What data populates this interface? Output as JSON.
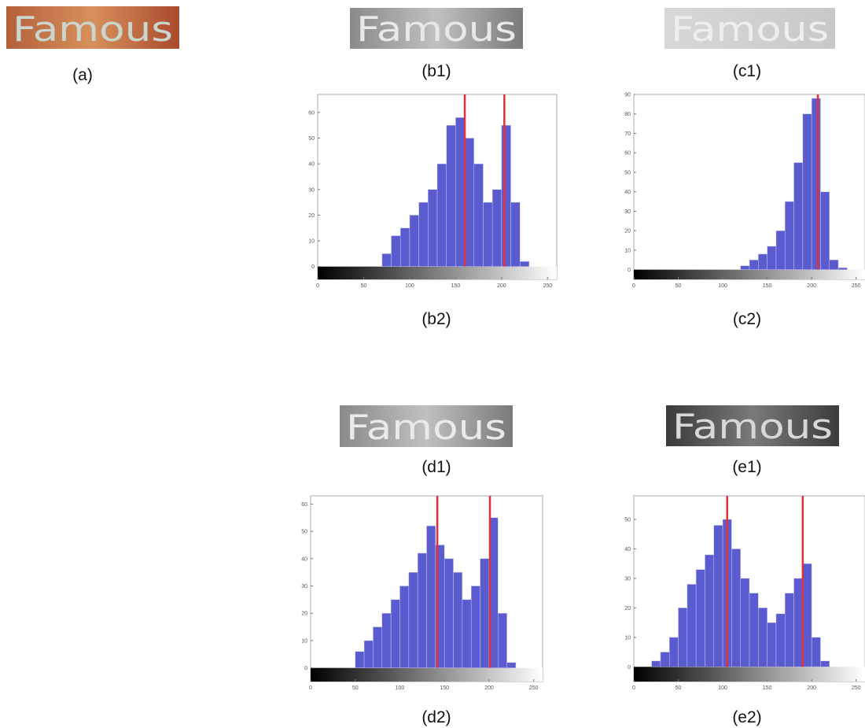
{
  "panels": [
    {
      "label": "(a)",
      "word": "Famous"
    },
    {
      "label": "(b1)",
      "word": "Famous"
    },
    {
      "label": "(c1)",
      "word": "Famous"
    },
    {
      "label": "(d1)",
      "word": "Famous"
    },
    {
      "label": "(e1)",
      "word": "Famous"
    }
  ],
  "chart_data": [
    {
      "type": "histogram",
      "label": "(b2)",
      "color": "#5b5bd0",
      "line_color": "#e0303a",
      "bins": [
        0,
        10,
        20,
        30,
        40,
        50,
        60,
        70,
        80,
        90,
        100,
        110,
        120,
        130,
        140,
        150,
        160,
        170,
        180,
        190,
        200,
        210,
        220,
        230,
        240,
        250,
        260
      ],
      "counts": [
        0,
        0,
        0,
        0,
        0,
        0,
        0,
        5,
        12,
        15,
        20,
        25,
        30,
        40,
        55,
        58,
        50,
        40,
        25,
        30,
        55,
        25,
        2,
        0,
        0,
        0
      ],
      "lines": [
        160,
        203
      ],
      "xlim": [
        0,
        260
      ],
      "xticks": [
        0,
        50,
        100,
        150,
        200,
        250
      ],
      "ylim": [
        -5,
        67
      ],
      "yticks": [
        0,
        10,
        20,
        30,
        40,
        50,
        60
      ]
    },
    {
      "type": "histogram",
      "label": "(c2)",
      "color": "#5b5bd0",
      "line_color": "#e0303a",
      "bins": [
        0,
        10,
        20,
        30,
        40,
        50,
        60,
        70,
        80,
        90,
        100,
        110,
        120,
        130,
        140,
        150,
        160,
        170,
        180,
        190,
        200,
        210,
        220,
        230,
        240,
        250,
        260
      ],
      "counts": [
        0,
        0,
        0,
        0,
        0,
        0,
        0,
        0,
        0,
        0,
        0,
        0,
        2,
        5,
        8,
        12,
        20,
        35,
        55,
        80,
        88,
        40,
        5,
        1,
        0,
        0
      ],
      "lines": [
        207
      ],
      "xlim": [
        0,
        260
      ],
      "xticks": [
        0,
        50,
        100,
        150,
        200,
        250
      ],
      "ylim": [
        -5,
        90
      ],
      "yticks": [
        0,
        10,
        20,
        30,
        40,
        50,
        60,
        70,
        80,
        90
      ]
    },
    {
      "type": "histogram",
      "label": "(d2)",
      "color": "#5b5bd0",
      "line_color": "#e0303a",
      "bins": [
        0,
        10,
        20,
        30,
        40,
        50,
        60,
        70,
        80,
        90,
        100,
        110,
        120,
        130,
        140,
        150,
        160,
        170,
        180,
        190,
        200,
        210,
        220,
        230,
        240,
        250,
        260
      ],
      "counts": [
        0,
        0,
        0,
        0,
        0,
        6,
        10,
        15,
        20,
        25,
        30,
        35,
        42,
        52,
        45,
        40,
        35,
        25,
        30,
        40,
        55,
        20,
        2,
        0,
        0,
        0
      ],
      "lines": [
        142,
        201
      ],
      "xlim": [
        0,
        260
      ],
      "xticks": [
        0,
        50,
        100,
        150,
        200,
        250
      ],
      "ylim": [
        -5,
        63
      ],
      "yticks": [
        0,
        10,
        20,
        30,
        40,
        50,
        60
      ]
    },
    {
      "type": "histogram",
      "label": "(e2)",
      "color": "#5b5bd0",
      "line_color": "#e0303a",
      "bins": [
        0,
        10,
        20,
        30,
        40,
        50,
        60,
        70,
        80,
        90,
        100,
        110,
        120,
        130,
        140,
        150,
        160,
        170,
        180,
        190,
        200,
        210,
        220,
        230,
        240,
        250,
        260
      ],
      "counts": [
        0,
        0,
        2,
        5,
        10,
        20,
        28,
        33,
        38,
        48,
        50,
        40,
        30,
        25,
        20,
        15,
        18,
        25,
        30,
        35,
        10,
        2,
        0,
        0,
        0,
        0
      ],
      "lines": [
        105,
        190
      ],
      "xlim": [
        0,
        260
      ],
      "xticks": [
        0,
        50,
        100,
        150,
        200,
        250
      ],
      "ylim": [
        -5,
        58
      ],
      "yticks": [
        0,
        10,
        20,
        30,
        40,
        50
      ]
    }
  ]
}
